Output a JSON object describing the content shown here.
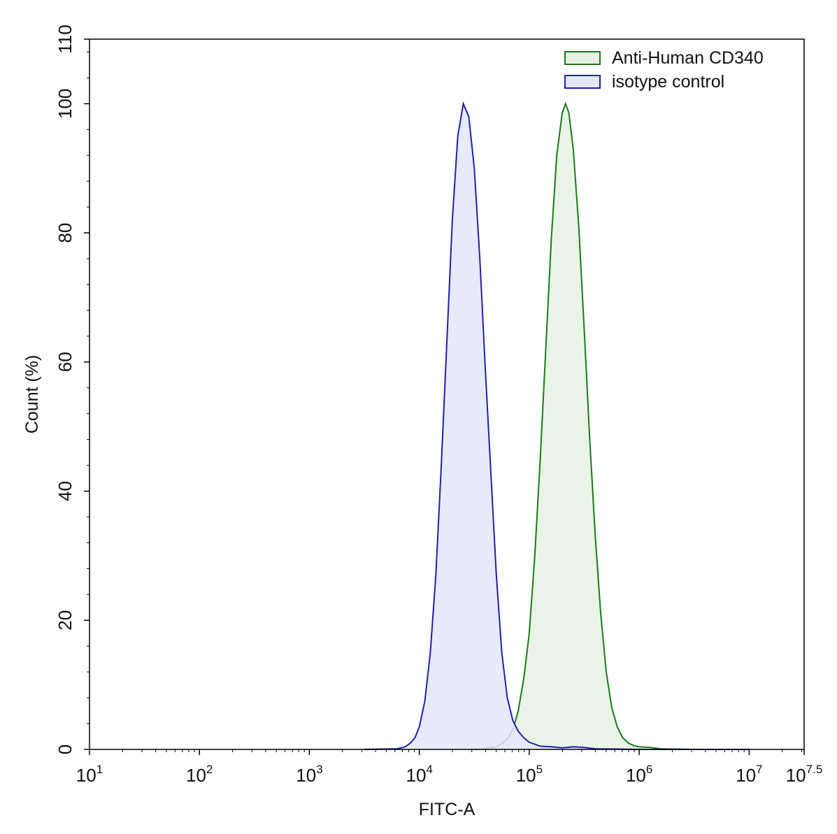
{
  "chart_data": {
    "type": "area",
    "title": "",
    "xlabel": "FITC-A",
    "ylabel": "Count  (%)",
    "x_scale": "log10",
    "xlim": [
      1,
      7.5
    ],
    "ylim": [
      0,
      110
    ],
    "x_ticks": [
      {
        "base": "10",
        "exp": "1",
        "value": 1
      },
      {
        "base": "10",
        "exp": "2",
        "value": 2
      },
      {
        "base": "10",
        "exp": "3",
        "value": 3
      },
      {
        "base": "10",
        "exp": "4",
        "value": 4
      },
      {
        "base": "10",
        "exp": "5",
        "value": 5
      },
      {
        "base": "10",
        "exp": "6",
        "value": 6
      },
      {
        "base": "10",
        "exp": "7",
        "value": 7
      },
      {
        "base": "10",
        "exp": "7.5",
        "value": 7.5
      }
    ],
    "y_ticks": [
      "0",
      "20",
      "40",
      "60",
      "80",
      "100",
      "110"
    ],
    "y_tick_values": [
      0,
      20,
      40,
      60,
      80,
      100,
      110
    ],
    "legend_position": "top-right",
    "grid": false,
    "series": [
      {
        "name": "Anti-Human CD340",
        "stroke": "#1a7a1a",
        "fill": "#e6f2e2",
        "x": [
          4.5,
          4.6,
          4.7,
          4.75,
          4.8,
          4.85,
          4.9,
          4.95,
          5.0,
          5.05,
          5.1,
          5.15,
          5.2,
          5.25,
          5.3,
          5.33,
          5.36,
          5.4,
          5.45,
          5.5,
          5.55,
          5.6,
          5.65,
          5.7,
          5.75,
          5.8,
          5.85,
          5.9,
          5.95,
          6.0,
          6.1,
          6.2,
          6.3,
          6.5,
          7.0
        ],
        "y": [
          0,
          0.1,
          0.4,
          0.9,
          1.6,
          3.0,
          6.0,
          11,
          18,
          30,
          45,
          62,
          79,
          92,
          98.6,
          100,
          98.6,
          93,
          81,
          65,
          48,
          33,
          21,
          12,
          6.5,
          3.5,
          1.8,
          1.0,
          0.6,
          0.4,
          0.3,
          0.1,
          0.05,
          0,
          0
        ]
      },
      {
        "name": "isotype control",
        "stroke": "#1c22a8",
        "fill": "#e4e6fa",
        "x": [
          3.5,
          3.8,
          3.87,
          3.92,
          3.96,
          4.0,
          4.05,
          4.1,
          4.15,
          4.2,
          4.25,
          4.3,
          4.35,
          4.4,
          4.45,
          4.5,
          4.55,
          4.6,
          4.65,
          4.7,
          4.75,
          4.8,
          4.85,
          4.9,
          4.95,
          5.0,
          5.1,
          5.2,
          5.3,
          5.4,
          5.5,
          5.6,
          5.8,
          6.0,
          7.0
        ],
        "y": [
          0,
          0.1,
          0.4,
          1.0,
          1.8,
          3.5,
          7.5,
          15,
          27,
          44,
          63,
          82,
          95,
          100,
          98,
          90,
          76,
          59,
          43,
          27,
          15,
          8,
          4.5,
          2.8,
          1.8,
          1.1,
          0.5,
          0.4,
          0.25,
          0.4,
          0.3,
          0.1,
          0.05,
          0,
          0
        ]
      }
    ]
  }
}
